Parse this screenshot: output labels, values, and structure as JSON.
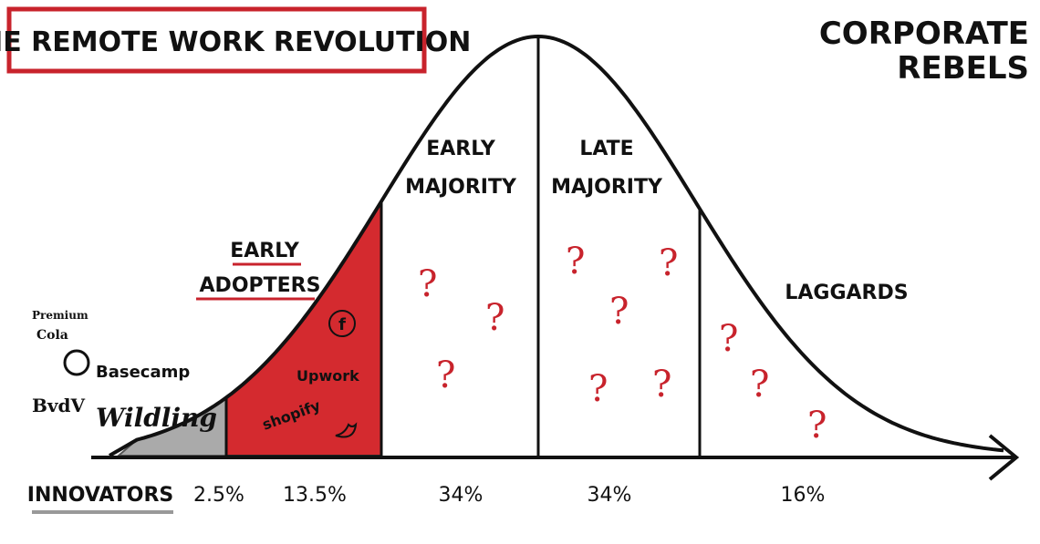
{
  "header": {
    "title": "THE REMOTE WORK REVOLUTION",
    "brand": [
      "CORPORATE",
      "REBELS"
    ]
  },
  "segments": [
    {
      "label": [
        "INNOVATORS"
      ],
      "share": "2.5%"
    },
    {
      "label": [
        "EARLY",
        "ADOPTERS"
      ],
      "share": "13.5%"
    },
    {
      "label": [
        "EARLY",
        "MAJORITY"
      ],
      "share": "34%"
    },
    {
      "label": [
        "LATE",
        "MAJORITY"
      ],
      "share": "34%"
    },
    {
      "label": [
        "LAGGARDS"
      ],
      "share": "16%"
    }
  ],
  "innovator_companies": [
    {
      "lines": [
        "Premium",
        "Cola"
      ]
    },
    {
      "lines": [
        "Basecamp"
      ]
    },
    {
      "lines": [
        "BvdV"
      ]
    },
    {
      "lines": [
        "Wildling"
      ]
    }
  ],
  "early_adopter_companies": [
    "f",
    "Upwork",
    "shopify"
  ],
  "question_mark": "?"
}
